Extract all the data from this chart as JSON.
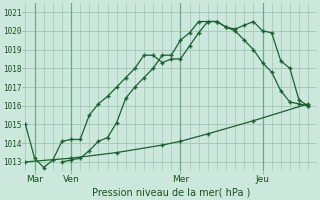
{
  "bg_color": "#cce8dc",
  "grid_color": "#a0c8b4",
  "line_color": "#1a6030",
  "xlabel": "Pression niveau de la mer( hPa )",
  "xlabel_color": "#1a5020",
  "tick_label_color": "#1a5020",
  "ylim": [
    1012.5,
    1021.5
  ],
  "yticks": [
    1013,
    1014,
    1015,
    1016,
    1017,
    1018,
    1019,
    1020,
    1021
  ],
  "xlim": [
    0,
    32
  ],
  "day_labels": [
    "Mar",
    "Ven",
    "Mer",
    "Jeu"
  ],
  "day_positions": [
    1,
    5,
    17,
    26
  ],
  "vline_positions": [
    1,
    5,
    17,
    26
  ],
  "line1_x": [
    0,
    1,
    2,
    3,
    4,
    5,
    6,
    7,
    8,
    9,
    10,
    11,
    12,
    13,
    14,
    15,
    16,
    17,
    18,
    19,
    20,
    21,
    22,
    23,
    24,
    25,
    26,
    27,
    28,
    29,
    30,
    31
  ],
  "line1_y": [
    1015.0,
    1013.2,
    1012.7,
    1013.1,
    1014.1,
    1014.2,
    1014.2,
    1015.5,
    1016.1,
    1016.5,
    1017.0,
    1017.5,
    1018.0,
    1018.7,
    1018.7,
    1018.3,
    1018.5,
    1018.5,
    1019.2,
    1019.9,
    1020.5,
    1020.5,
    1020.2,
    1020.0,
    1019.5,
    1019.0,
    1018.3,
    1017.8,
    1016.8,
    1016.2,
    1016.1,
    1016.0
  ],
  "line2_x": [
    4,
    5,
    6,
    7,
    8,
    9,
    10,
    11,
    12,
    13,
    14,
    15,
    16,
    17,
    18,
    19,
    20,
    21,
    22,
    23,
    24,
    25,
    26,
    27,
    28,
    29,
    30,
    31
  ],
  "line2_y": [
    1013.0,
    1013.1,
    1013.2,
    1013.6,
    1014.1,
    1014.3,
    1015.1,
    1016.4,
    1017.0,
    1017.5,
    1018.0,
    1018.7,
    1018.7,
    1019.5,
    1019.9,
    1020.5,
    1020.5,
    1020.5,
    1020.2,
    1020.1,
    1020.3,
    1020.5,
    1020.0,
    1019.9,
    1018.4,
    1018.0,
    1016.3,
    1016.0
  ],
  "line3_x": [
    0,
    5,
    10,
    15,
    17,
    20,
    25,
    31
  ],
  "line3_y": [
    1013.0,
    1013.2,
    1013.5,
    1013.9,
    1014.1,
    1014.5,
    1015.2,
    1016.1
  ]
}
